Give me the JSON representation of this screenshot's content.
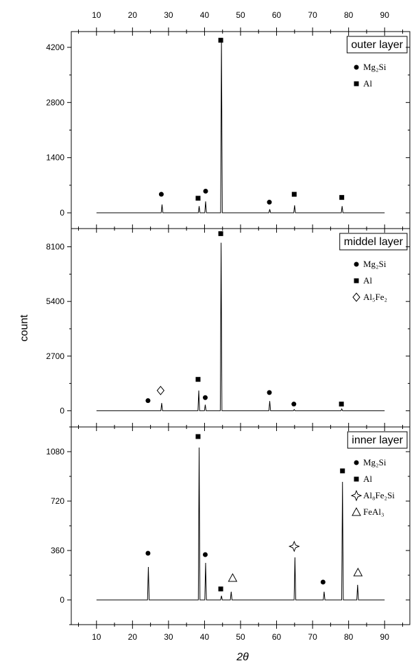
{
  "chart_data": {
    "type": "line",
    "xlabel": "2θ",
    "ylabel": "count",
    "x_ticks": [
      10,
      20,
      30,
      40,
      50,
      60,
      70,
      80,
      90
    ],
    "xlim": [
      3,
      97
    ],
    "panels": [
      {
        "title": "outer layer",
        "ylim": [
          -400,
          4600
        ],
        "y_ticks": [
          0,
          1400,
          2800,
          4200
        ],
        "peaks": [
          {
            "x": 28.2,
            "y": 210
          },
          {
            "x": 38.5,
            "y": 170
          },
          {
            "x": 40.3,
            "y": 290
          },
          {
            "x": 44.7,
            "y": 4400
          },
          {
            "x": 58.1,
            "y": 90
          },
          {
            "x": 65.0,
            "y": 190
          },
          {
            "x": 78.2,
            "y": 170
          }
        ],
        "markers": [
          {
            "x": 28.0,
            "y": 470,
            "symbol": "circle"
          },
          {
            "x": 38.2,
            "y": 370,
            "symbol": "square"
          },
          {
            "x": 40.3,
            "y": 550,
            "symbol": "circle"
          },
          {
            "x": 44.5,
            "y": 4380,
            "symbol": "square"
          },
          {
            "x": 58.0,
            "y": 270,
            "symbol": "circle"
          },
          {
            "x": 64.9,
            "y": 470,
            "symbol": "square"
          },
          {
            "x": 78.1,
            "y": 390,
            "symbol": "square"
          }
        ],
        "legend": [
          {
            "symbol": "circle",
            "label": "Mg₂Si"
          },
          {
            "symbol": "square",
            "label": "Al"
          }
        ]
      },
      {
        "title": "middel layer",
        "ylim": [
          -800,
          9000
        ],
        "y_ticks": [
          0,
          2700,
          5400,
          8100
        ],
        "peaks": [
          {
            "x": 28.1,
            "y": 380
          },
          {
            "x": 38.4,
            "y": 1000
          },
          {
            "x": 40.2,
            "y": 300
          },
          {
            "x": 44.6,
            "y": 8300
          },
          {
            "x": 58.1,
            "y": 480
          },
          {
            "x": 64.9,
            "y": 60
          },
          {
            "x": 78.1,
            "y": 90
          }
        ],
        "markers": [
          {
            "x": 24.3,
            "y": 500,
            "symbol": "circle"
          },
          {
            "x": 27.8,
            "y": 1000,
            "symbol": "diamond"
          },
          {
            "x": 38.2,
            "y": 1550,
            "symbol": "square"
          },
          {
            "x": 40.2,
            "y": 650,
            "symbol": "circle"
          },
          {
            "x": 44.5,
            "y": 8750,
            "symbol": "square"
          },
          {
            "x": 58.0,
            "y": 900,
            "symbol": "circle"
          },
          {
            "x": 64.8,
            "y": 330,
            "symbol": "circle"
          },
          {
            "x": 78.0,
            "y": 330,
            "symbol": "square"
          }
        ],
        "legend": [
          {
            "symbol": "circle",
            "label": "Mg₂Si"
          },
          {
            "symbol": "square",
            "label": "Al"
          },
          {
            "symbol": "diamond",
            "label": "Al₅Fe₂"
          }
        ]
      },
      {
        "title": "inner layer",
        "ylim": [
          -180,
          1260
        ],
        "y_ticks": [
          0,
          360,
          720,
          1080
        ],
        "peaks": [
          {
            "x": 24.4,
            "y": 240
          },
          {
            "x": 38.5,
            "y": 1110
          },
          {
            "x": 40.3,
            "y": 270
          },
          {
            "x": 44.7,
            "y": 30
          },
          {
            "x": 47.4,
            "y": 60
          },
          {
            "x": 65.1,
            "y": 310
          },
          {
            "x": 73.2,
            "y": 60
          },
          {
            "x": 78.3,
            "y": 860
          },
          {
            "x": 82.5,
            "y": 110
          }
        ],
        "markers": [
          {
            "x": 24.3,
            "y": 340,
            "symbol": "circle"
          },
          {
            "x": 38.2,
            "y": 1190,
            "symbol": "square"
          },
          {
            "x": 40.2,
            "y": 330,
            "symbol": "circle"
          },
          {
            "x": 44.5,
            "y": 80,
            "symbol": "square"
          },
          {
            "x": 47.8,
            "y": 160,
            "symbol": "triangle"
          },
          {
            "x": 64.9,
            "y": 390,
            "symbol": "star"
          },
          {
            "x": 72.9,
            "y": 130,
            "symbol": "circle"
          },
          {
            "x": 78.3,
            "y": 940,
            "symbol": "square"
          },
          {
            "x": 82.6,
            "y": 200,
            "symbol": "triangle"
          }
        ],
        "legend": [
          {
            "symbol": "circle",
            "label": "Mg₂Si"
          },
          {
            "symbol": "square",
            "label": "Al"
          },
          {
            "symbol": "star",
            "label": "Al₈Fe₂Si"
          },
          {
            "symbol": "triangle",
            "label": "FeAl₃"
          }
        ]
      }
    ]
  }
}
